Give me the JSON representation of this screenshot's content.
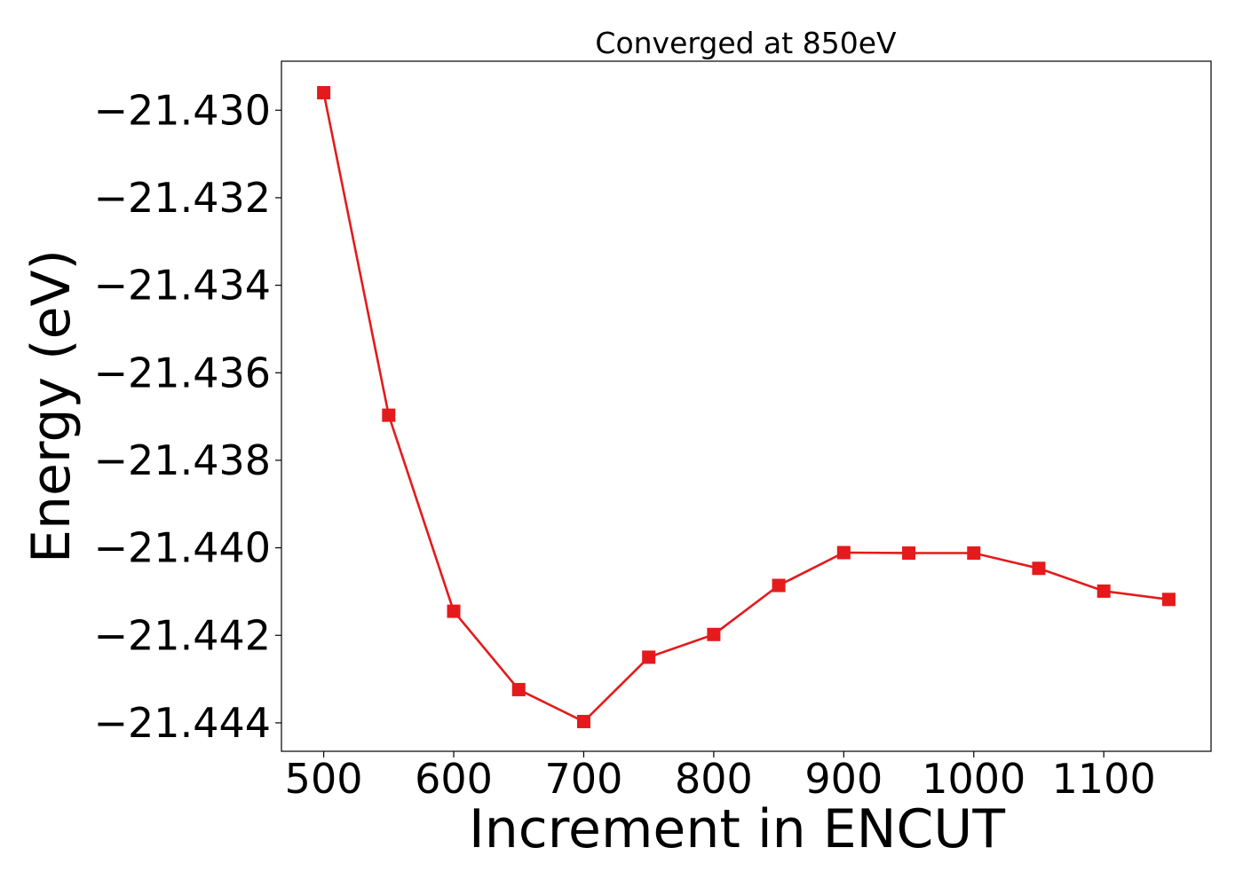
{
  "chart_data": {
    "type": "line",
    "title": "Converged at 850eV",
    "xlabel": "Increment in ENCUT",
    "ylabel": "Energy (eV)",
    "x": [
      500,
      550,
      600,
      650,
      700,
      750,
      800,
      850,
      900,
      950,
      1000,
      1050,
      1100,
      1150
    ],
    "series": [
      {
        "values": [
          -21.4296,
          -21.43697,
          -21.44145,
          -21.44324,
          -21.44397,
          -21.4425,
          -21.44198,
          -21.44086,
          -21.44011,
          -21.44012,
          -21.44012,
          -21.44047,
          -21.44099,
          -21.44118
        ],
        "color": "#e41a1c",
        "marker": "square"
      }
    ],
    "xlim": [
      467.5,
      1182.5
    ],
    "ylim": [
      -21.44465,
      -21.42888
    ],
    "xticks": [
      500,
      600,
      700,
      800,
      900,
      1000,
      1100
    ],
    "xtick_labels": [
      "500",
      "600",
      "700",
      "800",
      "900",
      "1000",
      "1100"
    ],
    "yticks": [
      -21.43,
      -21.432,
      -21.434,
      -21.436,
      -21.438,
      -21.44,
      -21.442,
      -21.444
    ],
    "ytick_labels": [
      "−21.430",
      "−21.432",
      "−21.434",
      "−21.436",
      "−21.438",
      "−21.440",
      "−21.442",
      "−21.444"
    ],
    "grid": false,
    "legend": "none"
  }
}
